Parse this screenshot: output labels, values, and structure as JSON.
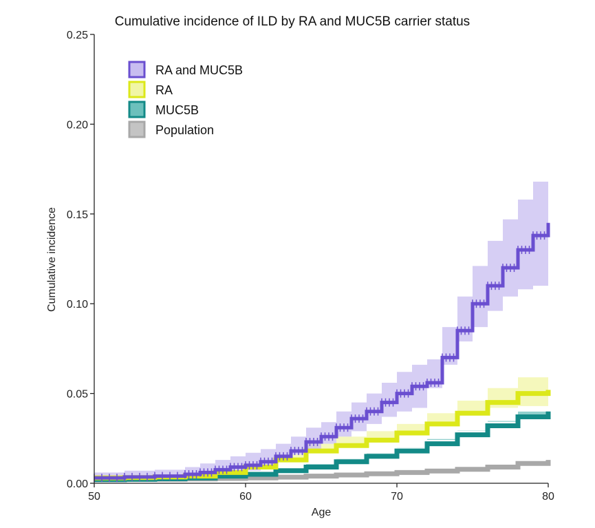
{
  "chart_data": {
    "type": "line",
    "title": "Cumulative incidence of ILD by RA and MUC5B carrier status",
    "xlabel": "Age",
    "ylabel": "Cumulative incidence",
    "xlim": [
      50,
      80
    ],
    "ylim": [
      0,
      0.25
    ],
    "x_ticks": [
      50,
      60,
      70,
      80
    ],
    "y_ticks": [
      "0.00",
      "0.05",
      "0.10",
      "0.15",
      "0.20",
      "0.25"
    ],
    "grid": false,
    "legend_position": "top-left",
    "series": [
      {
        "name": "RA and MUC5B",
        "color": "#6a4fd0",
        "band_color": "#c8bdf0",
        "x": [
          50,
          52,
          54,
          56,
          57,
          58,
          59,
          60,
          61,
          62,
          63,
          64,
          65,
          66,
          67,
          68,
          69,
          70,
          71,
          72,
          73,
          74,
          75,
          76,
          77,
          78,
          79,
          80
        ],
        "y": [
          0.003,
          0.0035,
          0.004,
          0.005,
          0.006,
          0.0075,
          0.009,
          0.01,
          0.012,
          0.015,
          0.018,
          0.023,
          0.026,
          0.031,
          0.036,
          0.04,
          0.045,
          0.05,
          0.054,
          0.056,
          0.07,
          0.085,
          0.1,
          0.11,
          0.12,
          0.13,
          0.138,
          0.145
        ],
        "lower": [
          0.001,
          0.0015,
          0.002,
          0.0025,
          0.003,
          0.0045,
          0.005,
          0.006,
          0.007,
          0.009,
          0.012,
          0.016,
          0.018,
          0.022,
          0.026,
          0.029,
          0.033,
          0.037,
          0.04,
          0.042,
          0.053,
          0.066,
          0.079,
          0.087,
          0.096,
          0.104,
          0.108,
          0.11
        ],
        "upper": [
          0.006,
          0.007,
          0.0075,
          0.009,
          0.011,
          0.013,
          0.015,
          0.017,
          0.019,
          0.022,
          0.026,
          0.031,
          0.034,
          0.04,
          0.045,
          0.05,
          0.056,
          0.062,
          0.066,
          0.069,
          0.087,
          0.104,
          0.121,
          0.135,
          0.147,
          0.158,
          0.168,
          0.18
        ]
      },
      {
        "name": "RA",
        "color": "#dce81a",
        "band_color": "#f1f6a6",
        "x": [
          50,
          52,
          54,
          56,
          58,
          60,
          62,
          64,
          66,
          68,
          70,
          72,
          74,
          76,
          78,
          80
        ],
        "y": [
          0.003,
          0.0032,
          0.0035,
          0.004,
          0.006,
          0.009,
          0.013,
          0.018,
          0.021,
          0.024,
          0.028,
          0.033,
          0.039,
          0.045,
          0.05,
          0.052
        ],
        "lower": [
          0.002,
          0.0022,
          0.0025,
          0.003,
          0.0045,
          0.007,
          0.01,
          0.014,
          0.017,
          0.02,
          0.023,
          0.028,
          0.033,
          0.038,
          0.042,
          0.043
        ],
        "upper": [
          0.004,
          0.0043,
          0.0046,
          0.0053,
          0.0078,
          0.011,
          0.016,
          0.022,
          0.026,
          0.029,
          0.033,
          0.039,
          0.046,
          0.053,
          0.059,
          0.062
        ]
      },
      {
        "name": "MUC5B",
        "color": "#138a87",
        "band_color": "#6cc0bc",
        "x": [
          50,
          52,
          54,
          56,
          58,
          60,
          62,
          64,
          66,
          68,
          70,
          72,
          74,
          76,
          78,
          80
        ],
        "y": [
          0.002,
          0.0022,
          0.0025,
          0.003,
          0.004,
          0.005,
          0.007,
          0.009,
          0.012,
          0.015,
          0.018,
          0.022,
          0.027,
          0.032,
          0.037,
          0.04
        ],
        "lower": [
          0.0015,
          0.0017,
          0.002,
          0.0024,
          0.0034,
          0.0043,
          0.0061,
          0.0079,
          0.0107,
          0.0135,
          0.0162,
          0.0199,
          0.0246,
          0.0293,
          0.0342,
          0.037
        ],
        "upper": [
          0.0025,
          0.0028,
          0.0031,
          0.0036,
          0.0047,
          0.0058,
          0.0079,
          0.0101,
          0.0134,
          0.0166,
          0.0198,
          0.0241,
          0.0294,
          0.0347,
          0.0399,
          0.0431
        ]
      },
      {
        "name": "Population",
        "color": "#a8a8a8",
        "band_color": "#c4c4c4",
        "x": [
          50,
          52,
          54,
          56,
          58,
          60,
          62,
          64,
          66,
          68,
          70,
          72,
          74,
          76,
          78,
          80
        ],
        "y": [
          0.002,
          0.0021,
          0.0022,
          0.0024,
          0.0027,
          0.003,
          0.0034,
          0.004,
          0.0046,
          0.0053,
          0.006,
          0.0068,
          0.0078,
          0.009,
          0.011,
          0.013
        ],
        "lower": [
          0.0015,
          0.0016,
          0.0017,
          0.0019,
          0.0022,
          0.0025,
          0.0029,
          0.0034,
          0.004,
          0.0046,
          0.0053,
          0.006,
          0.0069,
          0.008,
          0.0098,
          0.0118
        ],
        "upper": [
          0.0025,
          0.0026,
          0.0027,
          0.003,
          0.0033,
          0.0036,
          0.004,
          0.0046,
          0.0053,
          0.006,
          0.0068,
          0.0076,
          0.0087,
          0.01,
          0.0122,
          0.0142
        ]
      }
    ]
  }
}
